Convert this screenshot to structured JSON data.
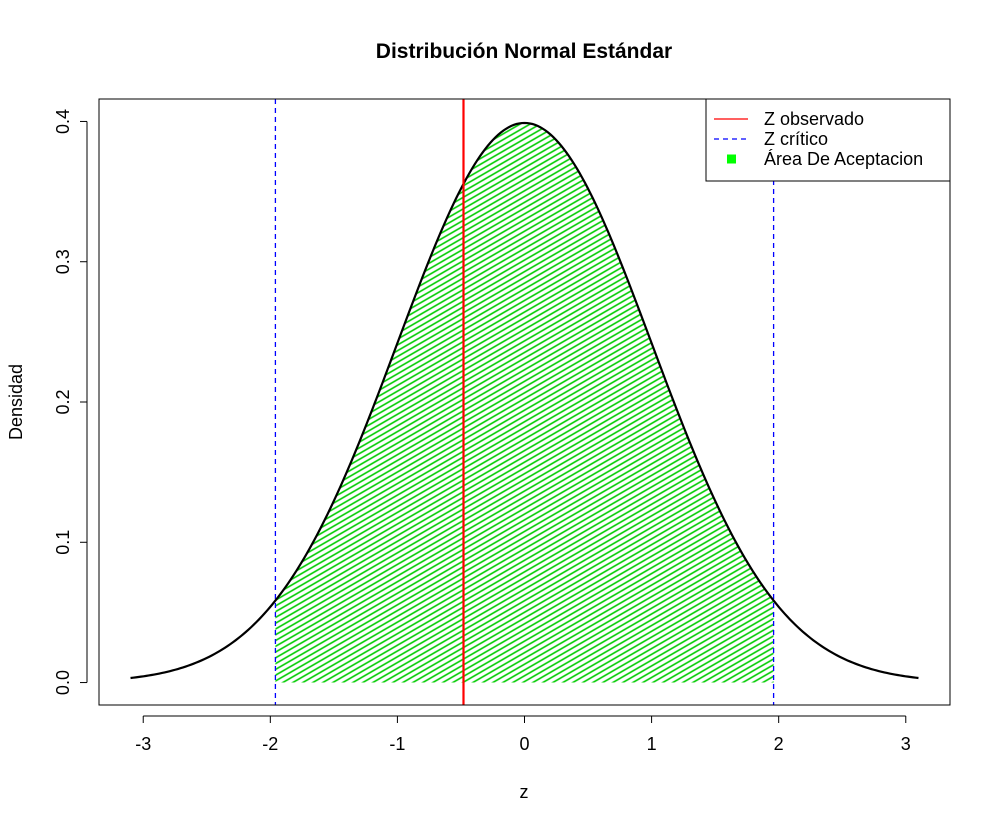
{
  "chart_data": {
    "type": "line",
    "title": "Distribución Normal Estándar",
    "xlabel": "z",
    "ylabel": "Densidad",
    "xlim": [
      -3.1,
      3.1
    ],
    "ylim": [
      0,
      0.4
    ],
    "x_ticks": [
      "-3",
      "-2",
      "-1",
      "0",
      "1",
      "2",
      "3"
    ],
    "y_ticks": [
      "0.0",
      "0.1",
      "0.2",
      "0.3",
      "0.4"
    ],
    "curve": {
      "function": "standard normal density",
      "x_range": [
        -3.1,
        3.1
      ],
      "color": "#000000"
    },
    "acceptance_region": {
      "from": -1.96,
      "to": 1.96,
      "color": "#00ff00"
    },
    "z_observed": {
      "value": -0.48,
      "color": "#ff0000"
    },
    "z_critical": {
      "values": [
        -1.96,
        1.96
      ],
      "color": "#0000ff"
    },
    "legend": {
      "position": "top-right",
      "items": [
        {
          "label": "Z observado",
          "style": "solid-line",
          "color": "#ff0000"
        },
        {
          "label": "Z crítico",
          "style": "dashed-line",
          "color": "#0000ff"
        },
        {
          "label": "Área De Aceptacion",
          "style": "square",
          "color": "#00ff00"
        }
      ]
    }
  }
}
